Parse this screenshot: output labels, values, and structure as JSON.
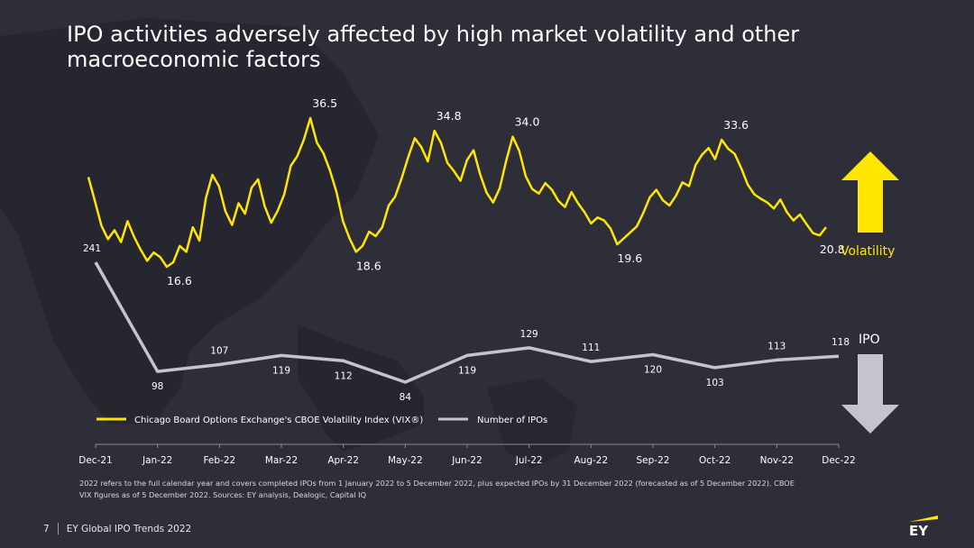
{
  "title": "IPO activities adversely affected by high market volatility and other macroeconomic factors",
  "colors": {
    "background": "#2e2e38",
    "volatility": "#ffe600",
    "ipo": "#c4c4cd",
    "text": "#ffffff"
  },
  "chart_data": {
    "type": "line",
    "title": "IPO activities adversely affected by high market volatility and other macroeconomic factors",
    "x_ticks": [
      "Dec-21",
      "Jan-22",
      "Feb-22",
      "Mar-22",
      "Apr-22",
      "May-22",
      "Jun-22",
      "Jul-22",
      "Aug-22",
      "Sep-22",
      "Oct-22",
      "Nov-22",
      "Dec-22"
    ],
    "series": [
      {
        "name": "Chicago Board Options Exchange's CBOE Volatility Index (VIX®)",
        "color": "#ffe600",
        "values": [
          28.6,
          25.4,
          22.1,
          20.3,
          21.5,
          19.9,
          22.7,
          20.6,
          18.9,
          17.4,
          18.5,
          17.9,
          16.6,
          17.2,
          19.4,
          18.6,
          21.9,
          20.1,
          25.8,
          28.9,
          27.4,
          24.0,
          22.2,
          25.1,
          23.7,
          27.2,
          28.3,
          24.7,
          22.5,
          24.1,
          26.3,
          30.1,
          31.4,
          33.6,
          36.5,
          33.2,
          31.8,
          29.5,
          26.6,
          22.7,
          20.4,
          18.6,
          19.4,
          21.3,
          20.7,
          21.9,
          24.8,
          26.0,
          28.5,
          31.3,
          33.8,
          32.6,
          30.7,
          34.8,
          33.2,
          30.5,
          29.4,
          28.1,
          30.9,
          32.2,
          29.0,
          26.5,
          25.2,
          27.1,
          30.8,
          34.0,
          32.1,
          28.7,
          27.0,
          26.4,
          27.8,
          26.9,
          25.4,
          24.6,
          26.6,
          25.1,
          23.9,
          22.4,
          23.2,
          22.8,
          21.7,
          19.6,
          20.4,
          21.2,
          22.0,
          23.8,
          25.9,
          26.9,
          25.5,
          24.8,
          26.1,
          27.9,
          27.4,
          30.2,
          31.6,
          32.5,
          31.0,
          33.6,
          32.4,
          31.7,
          29.8,
          27.6,
          26.3,
          25.7,
          25.2,
          24.4,
          25.6,
          23.9,
          22.8,
          23.6,
          22.3,
          21.1,
          20.8,
          21.9
        ],
        "labels": [
          {
            "index": 34,
            "text": "36.5"
          },
          {
            "index": 12,
            "text": "16.6"
          },
          {
            "index": 41,
            "text": "18.6"
          },
          {
            "index": 53,
            "text": "34.8"
          },
          {
            "index": 65,
            "text": "34.0"
          },
          {
            "index": 81,
            "text": "19.6"
          },
          {
            "index": 97,
            "text": "33.6"
          },
          {
            "index": 112,
            "text": "20.8"
          }
        ],
        "end_label": "Volatility"
      },
      {
        "name": "Number of IPOs",
        "color": "#c4c4cd",
        "values": [
          241,
          98,
          107,
          119,
          112,
          84,
          119,
          129,
          111,
          120,
          103,
          113,
          118
        ],
        "labels": [
          "241",
          "98",
          "107",
          "119",
          "112",
          "84",
          "119",
          "129",
          "111",
          "120",
          "103",
          "113",
          "118"
        ],
        "end_label": "IPO"
      }
    ]
  },
  "footnote": {
    "line1": "2022 refers to the full calendar year and covers completed IPOs from 1 January 2022 to 5 December 2022, plus expected IPOs by 31 December 2022 (forecasted as of 5 December 2022). CBOE",
    "line2": "VIX figures as of 5 December 2022. Sources: EY analysis, Dealogic, Capital IQ"
  },
  "footer": {
    "page_number": "7",
    "report_name": "EY Global IPO Trends 2022"
  },
  "logo": {
    "text": "EY"
  }
}
